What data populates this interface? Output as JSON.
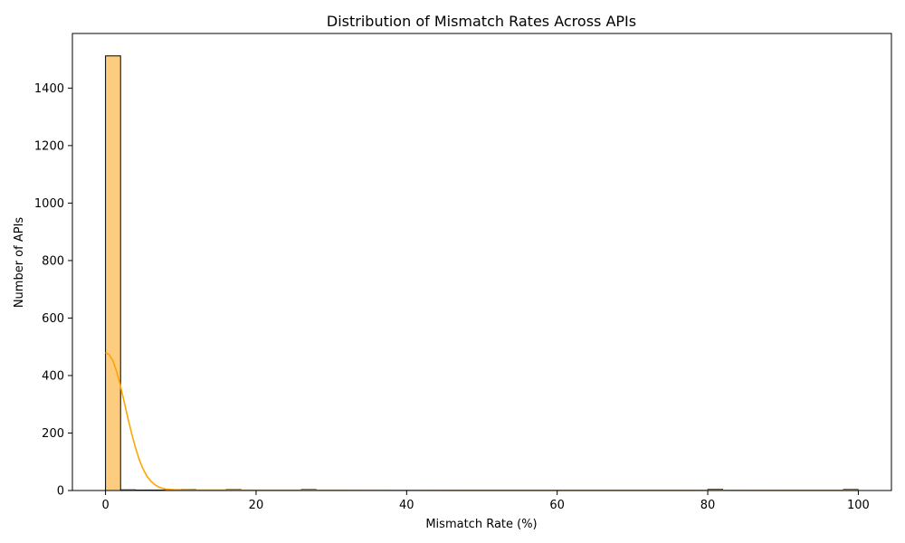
{
  "chart_data": {
    "type": "bar",
    "title": "Distribution of Mismatch Rates Across APIs",
    "xlabel": "Mismatch Rate (%)",
    "ylabel": "Number of APIs",
    "xlim": [
      -4.4,
      104.4
    ],
    "ylim": [
      0,
      1590
    ],
    "x_ticks": [
      0,
      20,
      40,
      60,
      80,
      100
    ],
    "y_ticks": [
      0,
      200,
      400,
      600,
      800,
      1000,
      1200,
      1400
    ],
    "bin_width": 2,
    "bins": [
      {
        "x0": 0,
        "x1": 2,
        "count": 1512
      },
      {
        "x0": 2,
        "x1": 4,
        "count": 3
      },
      {
        "x0": 4,
        "x1": 6,
        "count": 2
      },
      {
        "x0": 6,
        "x1": 8,
        "count": 2
      },
      {
        "x0": 8,
        "x1": 10,
        "count": 1
      },
      {
        "x0": 10,
        "x1": 12,
        "count": 4
      },
      {
        "x0": 12,
        "x1": 14,
        "count": 2
      },
      {
        "x0": 14,
        "x1": 16,
        "count": 1
      },
      {
        "x0": 16,
        "x1": 18,
        "count": 4
      },
      {
        "x0": 18,
        "x1": 20,
        "count": 2
      },
      {
        "x0": 20,
        "x1": 22,
        "count": 2
      },
      {
        "x0": 22,
        "x1": 24,
        "count": 1
      },
      {
        "x0": 24,
        "x1": 26,
        "count": 1
      },
      {
        "x0": 26,
        "x1": 28,
        "count": 4
      },
      {
        "x0": 28,
        "x1": 30,
        "count": 2
      },
      {
        "x0": 30,
        "x1": 32,
        "count": 1
      },
      {
        "x0": 32,
        "x1": 34,
        "count": 1
      },
      {
        "x0": 34,
        "x1": 36,
        "count": 1
      },
      {
        "x0": 36,
        "x1": 38,
        "count": 2
      },
      {
        "x0": 38,
        "x1": 40,
        "count": 1
      },
      {
        "x0": 40,
        "x1": 42,
        "count": 1
      },
      {
        "x0": 44,
        "x1": 46,
        "count": 1
      },
      {
        "x0": 48,
        "x1": 50,
        "count": 1
      },
      {
        "x0": 50,
        "x1": 52,
        "count": 1
      },
      {
        "x0": 60,
        "x1": 62,
        "count": 1
      },
      {
        "x0": 72,
        "x1": 74,
        "count": 1
      },
      {
        "x0": 80,
        "x1": 82,
        "count": 5
      },
      {
        "x0": 82,
        "x1": 84,
        "count": 1
      },
      {
        "x0": 90,
        "x1": 92,
        "count": 1
      },
      {
        "x0": 98,
        "x1": 100,
        "count": 4
      }
    ],
    "kde_curve": {
      "x": [
        0,
        0.5,
        1,
        1.5,
        2,
        2.5,
        3,
        3.5,
        4,
        4.5,
        5,
        5.5,
        6,
        6.5,
        7,
        7.5,
        8,
        9,
        10,
        12,
        14,
        20,
        30,
        40,
        50,
        60,
        70,
        80,
        90,
        100
      ],
      "y": [
        480,
        472,
        450,
        412,
        362,
        306,
        249,
        195,
        147,
        106,
        74,
        50,
        33,
        21,
        13,
        8,
        5,
        3,
        2,
        1.5,
        1.5,
        1,
        1,
        0.8,
        0.6,
        0.5,
        0.5,
        0.8,
        0.6,
        0.5
      ]
    },
    "colors": {
      "bar_fill": "#fecc7f",
      "bar_edge": "#000000",
      "kde_line": "#ffa500",
      "axis": "#000000",
      "background": "#ffffff"
    },
    "grid": false
  }
}
